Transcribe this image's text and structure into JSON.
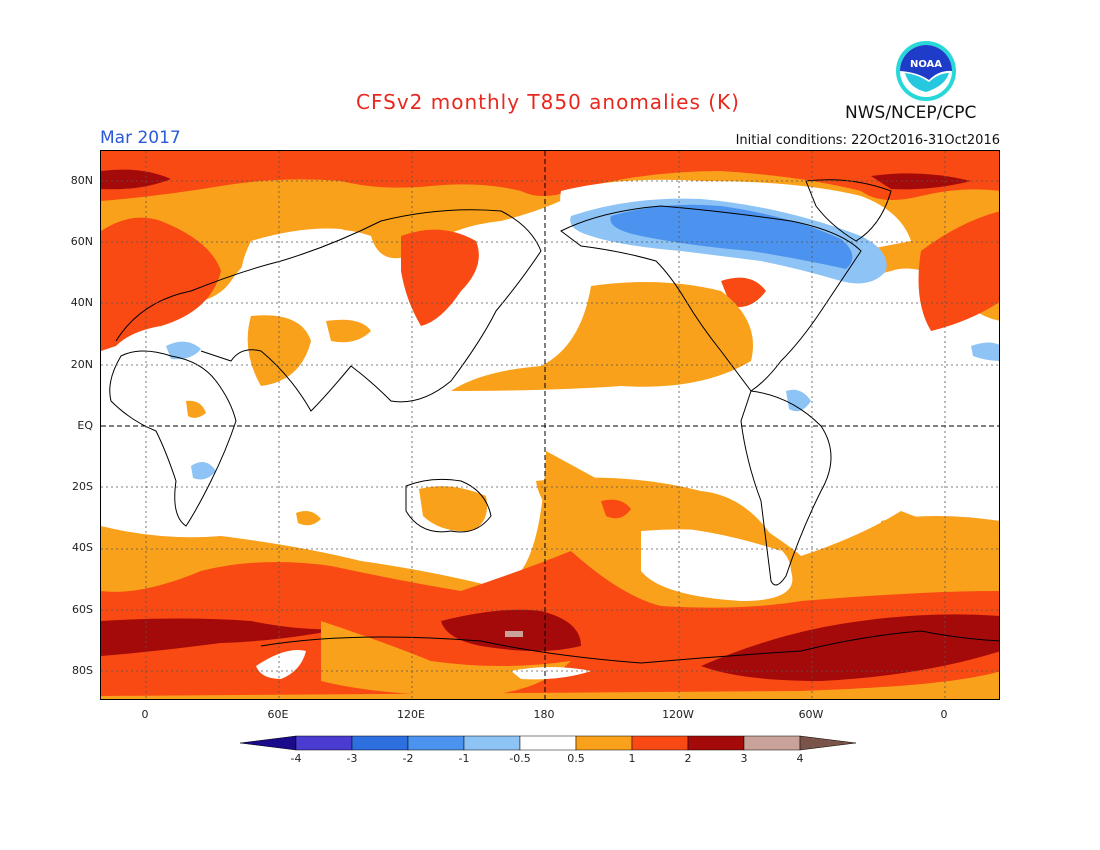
{
  "header": {
    "title": "CFSv2 monthly T850 anomalies (K)",
    "valid_month": "Mar 2017",
    "agency": "NWS/NCEP/CPC",
    "initial_conditions": "Initial conditions: 22Oct2016-31Oct2016",
    "logo_text": "NOAA"
  },
  "axes": {
    "lat_labels": [
      "80N",
      "60N",
      "40N",
      "20N",
      "EQ",
      "20S",
      "40S",
      "60S",
      "80S"
    ],
    "lon_labels": [
      "0",
      "60E",
      "120E",
      "180",
      "120W",
      "60W",
      "0"
    ]
  },
  "colorbar": {
    "labels": [
      "-4",
      "-3",
      "-2",
      "-1",
      "-0.5",
      "0.5",
      "1",
      "2",
      "3",
      "4"
    ],
    "colors": [
      "#1a0a8c",
      "#4a3cd0",
      "#2e6fe0",
      "#4b93ee",
      "#8ec3f5",
      "#ffffff",
      "#f9a11b",
      "#f84a12",
      "#a50a0a",
      "#c9a29a",
      "#7a5448"
    ]
  }
}
